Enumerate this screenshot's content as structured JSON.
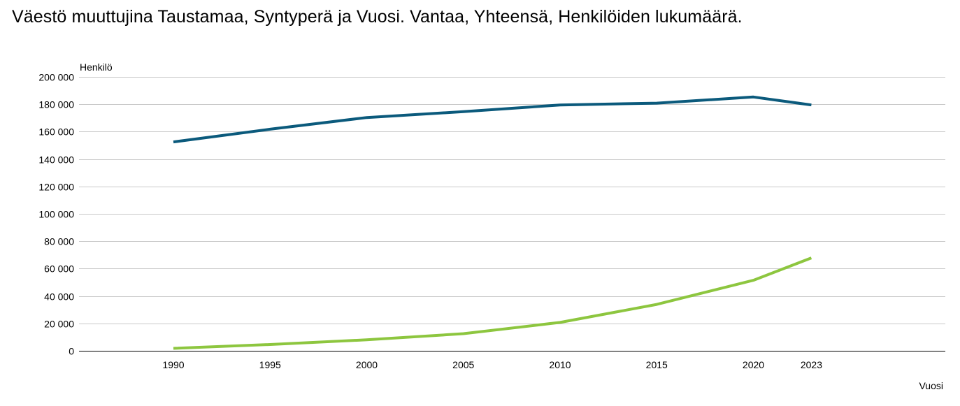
{
  "colors": {
    "background": "#ffffff",
    "grid": "#c8c8c8",
    "text": "#000000"
  },
  "chart_data": {
    "type": "line",
    "title": "Väestö muuttujina Taustamaa, Syntyperä ja Vuosi. Vantaa, Yhteensä, Henkilöiden lukumäärä.",
    "xlabel": "Vuosi",
    "ylabel": "Henkilö",
    "x": [
      "1990",
      "1995",
      "2000",
      "2005",
      "2010",
      "2015",
      "2020",
      "2023"
    ],
    "ylim": [
      0,
      200000
    ],
    "yticks": [
      0,
      20000,
      40000,
      60000,
      80000,
      100000,
      120000,
      140000,
      160000,
      180000,
      200000
    ],
    "ytick_labels": [
      "0",
      "20 000",
      "40 000",
      "60 000",
      "80 000",
      "100 000",
      "120 000",
      "140 000",
      "160 000",
      "180 000",
      "200 000"
    ],
    "grid": true,
    "legend": "none",
    "series": [
      {
        "color": "#0b5a7c",
        "values": [
          152500,
          161800,
          170300,
          174600,
          179500,
          180800,
          185300,
          179500
        ]
      },
      {
        "color": "#8dc63f",
        "values": [
          1800,
          4600,
          8000,
          12500,
          20700,
          33900,
          51500,
          67800
        ]
      }
    ]
  }
}
